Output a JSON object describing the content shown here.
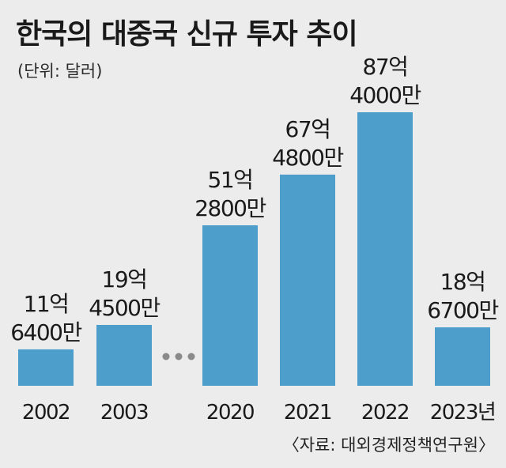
{
  "title": "한국의 대중국 신규 투자 추이",
  "subtitle": "(단위: 달러)",
  "source": "〈자료: 대외경제정책연구원〉",
  "chart_data": {
    "type": "bar",
    "title": "한국의 대중국 신규 투자 추이",
    "unit": "(단위: 달러)",
    "categories": [
      "2002",
      "2003",
      "2020",
      "2021",
      "2022",
      "2023년"
    ],
    "values": [
      1164000000,
      1945000000,
      5128000000,
      6748000000,
      8740000000,
      1867000000
    ],
    "value_labels": [
      [
        "11억",
        "6400만"
      ],
      [
        "19억",
        "4500만"
      ],
      [
        "51억",
        "2800만"
      ],
      [
        "67억",
        "4800만"
      ],
      [
        "87억",
        "4000만"
      ],
      [
        "18억",
        "6700만"
      ]
    ],
    "break_between": [
      "2003",
      "2020"
    ],
    "colors": {
      "bar": "#4d9ecb",
      "background": "#ececec"
    },
    "grid": false,
    "legend": "none"
  }
}
